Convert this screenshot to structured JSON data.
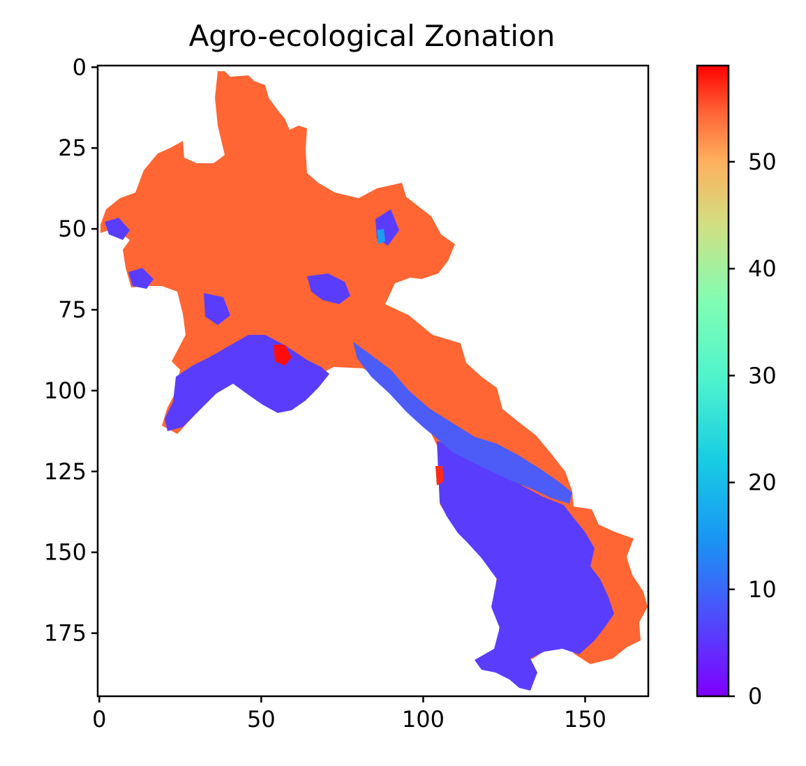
{
  "chart_data": {
    "type": "heatmap",
    "title": "Agro-ecological Zonation",
    "xlabel": "",
    "ylabel": "",
    "xlim": [
      -0.5,
      169.5
    ],
    "ylim": [
      194.5,
      -0.5
    ],
    "x_ticks": [
      0,
      50,
      100,
      150
    ],
    "x_tick_labels": [
      "0",
      "50",
      "100",
      "150"
    ],
    "y_ticks": [
      0,
      25,
      50,
      75,
      100,
      125,
      150,
      175
    ],
    "y_tick_labels": [
      "0",
      "25",
      "50",
      "75",
      "100",
      "125",
      "150",
      "175"
    ],
    "colormap": "rainbow",
    "colorbar": {
      "vmin": 0,
      "vmax": 59,
      "ticks": [
        0,
        10,
        20,
        30,
        40,
        50
      ],
      "tick_labels": [
        "0",
        "10",
        "20",
        "30",
        "40",
        "50"
      ]
    },
    "dominant_zone_values": {
      "highland_north": 50,
      "lowland_south": 5,
      "river_corridor": 7,
      "isolated_max": 59
    },
    "grid": false
  }
}
